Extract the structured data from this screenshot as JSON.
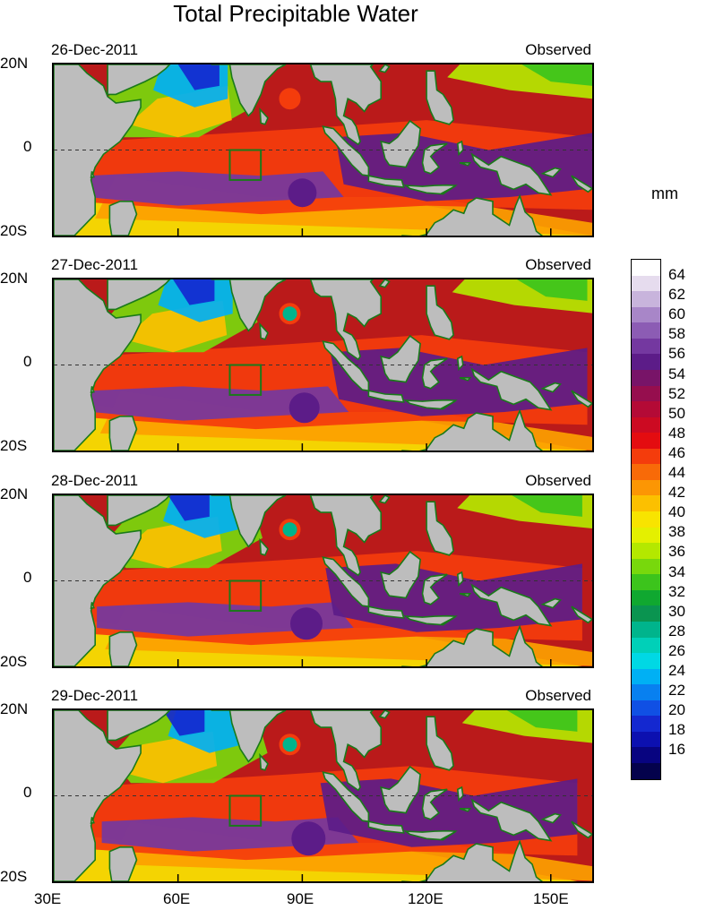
{
  "figure": {
    "title": "Total Precipitable Water",
    "unit": "mm",
    "x_tick_labels": [
      "30E",
      "60E",
      "90E",
      "120E",
      "150E"
    ],
    "y_tick_labels": [
      "20N",
      "0",
      "20S"
    ]
  },
  "panels": [
    {
      "date": "26-Dec-2011",
      "label": "Observed"
    },
    {
      "date": "27-Dec-2011",
      "label": "Observed"
    },
    {
      "date": "28-Dec-2011",
      "label": "Observed"
    },
    {
      "date": "29-Dec-2011",
      "label": "Observed"
    }
  ],
  "colorbar": {
    "labels": [
      "64",
      "62",
      "60",
      "58",
      "56",
      "54",
      "52",
      "50",
      "48",
      "46",
      "44",
      "42",
      "40",
      "38",
      "36",
      "34",
      "32",
      "30",
      "28",
      "26",
      "24",
      "22",
      "20",
      "18",
      "16"
    ],
    "colors_top_to_bottom": [
      "#ffffff",
      "#e6dcee",
      "#c8b4dc",
      "#a886c8",
      "#8c5cb4",
      "#7438a0",
      "#5c1c88",
      "#781468",
      "#960e4e",
      "#b40a36",
      "#cc0a22",
      "#e40c10",
      "#f43c0c",
      "#f86a08",
      "#fc9604",
      "#fcc000",
      "#f8e400",
      "#e4f000",
      "#b4e800",
      "#78d80c",
      "#3cc41c",
      "#10a830",
      "#0a9450",
      "#00b48c",
      "#00d0b8",
      "#00d8e4",
      "#00b0f4",
      "#0880f0",
      "#1050e4",
      "#1428d0",
      "#0c10b0",
      "#080480",
      "#04024c"
    ]
  },
  "chart_data": {
    "type": "heatmap",
    "title": "Total Precipitable Water",
    "variable": "total precipitable water",
    "unit": "mm",
    "x_axis": {
      "ticks": [
        "30E",
        "60E",
        "90E",
        "120E",
        "150E"
      ],
      "range": [
        30,
        160
      ]
    },
    "y_axis": {
      "ticks": [
        "20N",
        "0",
        "20S"
      ],
      "range": [
        -20,
        20
      ]
    },
    "color_range": [
      16,
      64
    ],
    "panels": [
      {
        "date": "26-Dec-2011",
        "label": "Observed",
        "box": {
          "lon": [
            72.5,
            80
          ],
          "lat": [
            -7,
            0
          ]
        }
      },
      {
        "date": "27-Dec-2011",
        "label": "Observed",
        "box": {
          "lon": [
            72.5,
            80
          ],
          "lat": [
            -7,
            0
          ]
        }
      },
      {
        "date": "28-Dec-2011",
        "label": "Observed",
        "box": {
          "lon": [
            72.5,
            80
          ],
          "lat": [
            -7,
            0
          ]
        }
      },
      {
        "date": "29-Dec-2011",
        "label": "Observed",
        "box": {
          "lon": [
            72.5,
            80
          ],
          "lat": [
            -7,
            0
          ]
        }
      }
    ]
  }
}
